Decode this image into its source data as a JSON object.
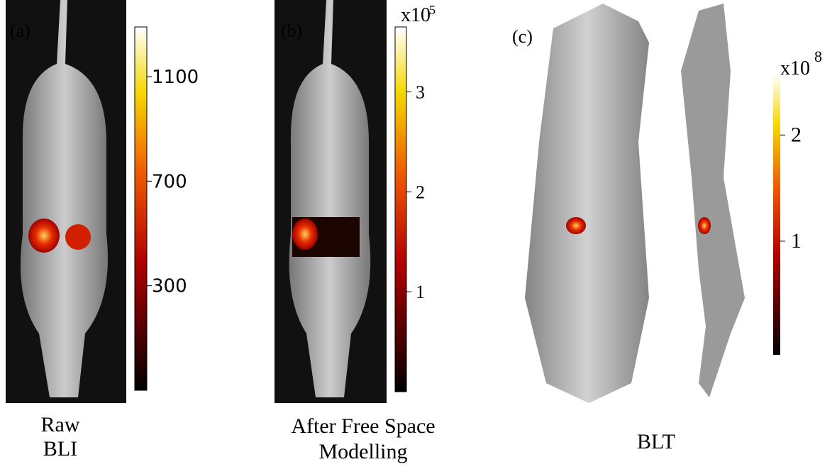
{
  "panels": [
    {
      "label": "(a)",
      "caption": [
        "Raw",
        "BLI"
      ],
      "colorbar": {
        "lim": [
          -100,
          1290
        ],
        "ticks": [
          300,
          700,
          1100
        ]
      }
    },
    {
      "label": "(b)",
      "caption": [
        "After Free Space",
        "Modelling"
      ],
      "colorbar": {
        "multiplier": "x10",
        "exponent": "5",
        "lim": [
          0,
          3.65
        ],
        "ticks": [
          1,
          2,
          3
        ]
      }
    },
    {
      "label": "(c)",
      "caption": [
        "BLT"
      ],
      "colorbar": {
        "multiplier": "x10",
        "exponent": "8",
        "lim": [
          -0.07,
          2.57
        ],
        "ticks": [
          1,
          2
        ]
      }
    }
  ]
}
